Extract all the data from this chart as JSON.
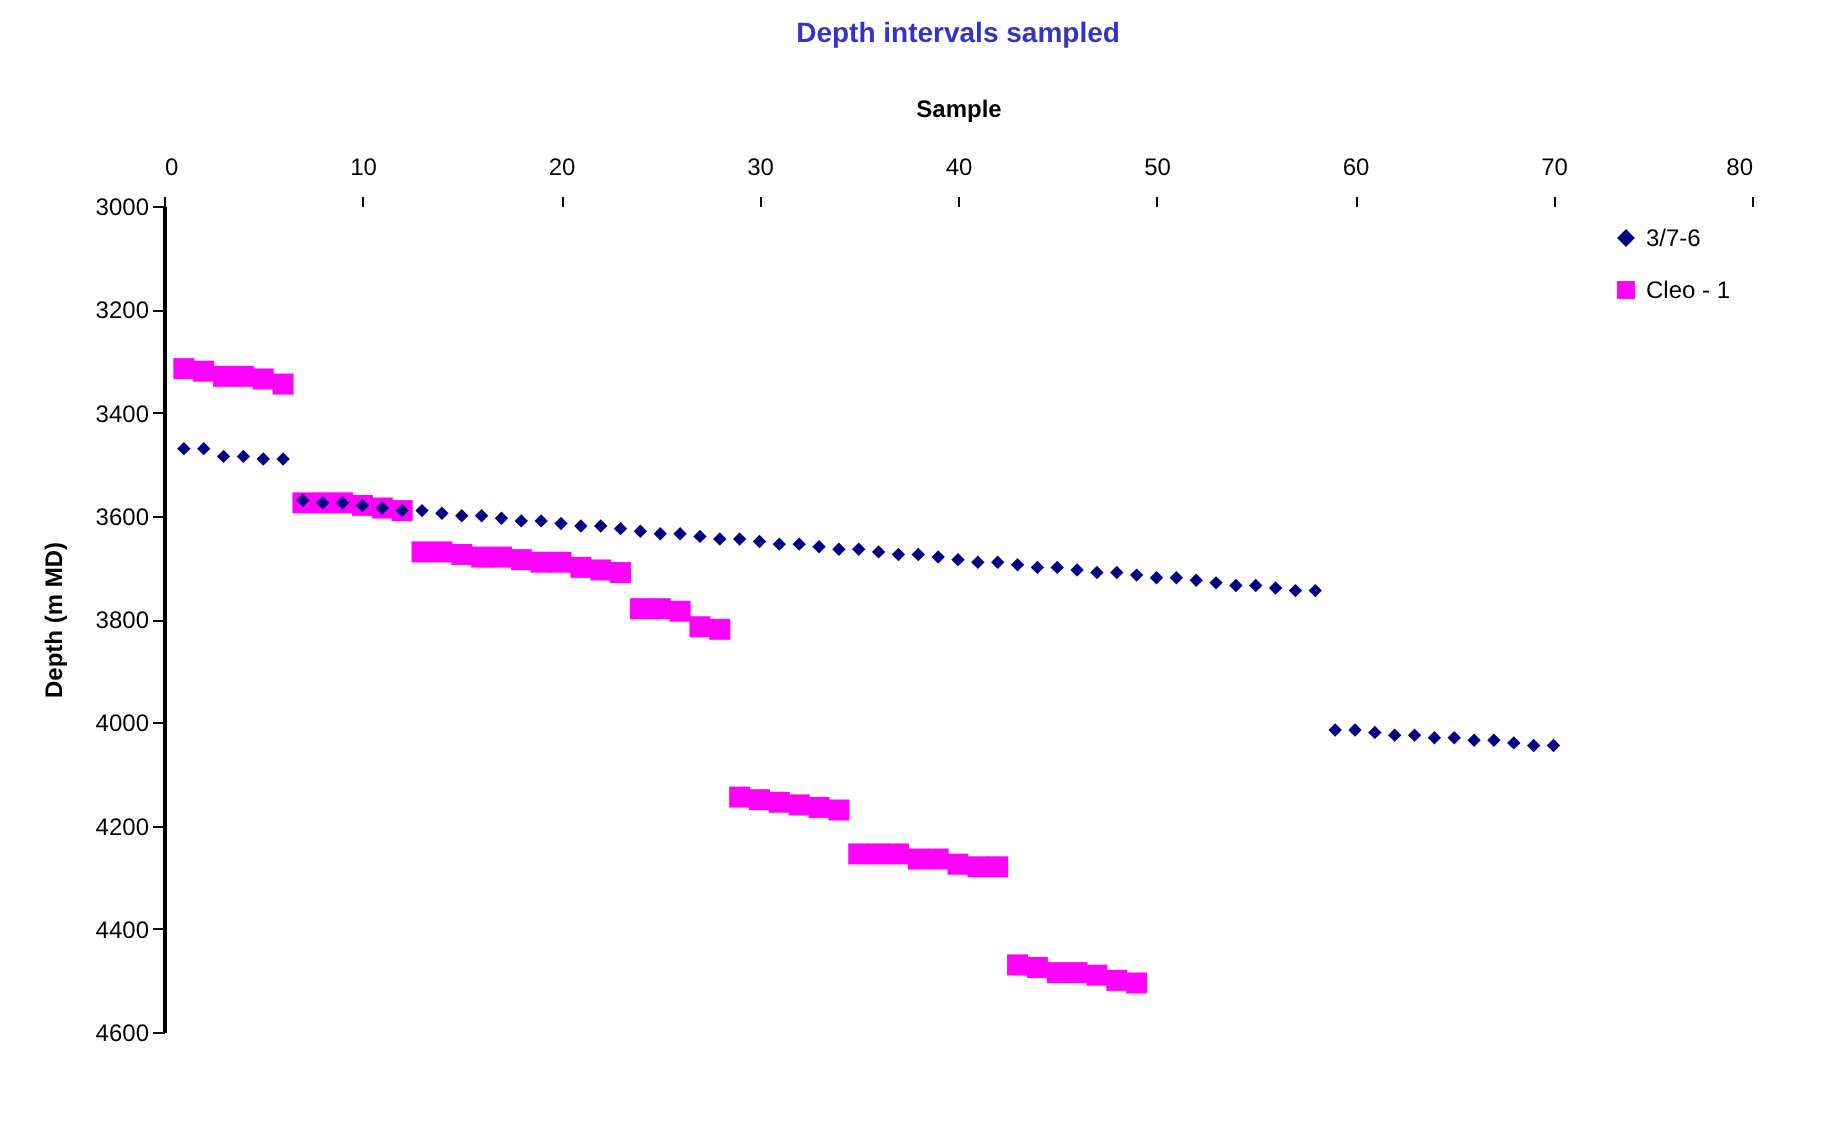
{
  "chart_data": {
    "type": "scatter",
    "title": "Depth intervals sampled",
    "xlabel": "Sample",
    "ylabel": "Depth (m MD)",
    "xlim": [
      0,
      80
    ],
    "xticks": [
      0,
      10,
      20,
      30,
      40,
      50,
      60,
      70,
      80
    ],
    "ylim": [
      4600,
      3000
    ],
    "yticks": [
      3000,
      3200,
      3400,
      3600,
      3800,
      4000,
      4200,
      4400,
      4600
    ],
    "grid": false,
    "legend": "top right",
    "series": [
      {
        "name": "3/7-6",
        "color": "#000080",
        "marker": "diamond",
        "x": [
          1,
          2,
          3,
          4,
          5,
          6,
          7,
          8,
          9,
          10,
          11,
          12,
          13,
          14,
          15,
          16,
          17,
          18,
          19,
          20,
          21,
          22,
          23,
          24,
          25,
          26,
          27,
          28,
          29,
          30,
          31,
          32,
          33,
          34,
          35,
          36,
          37,
          38,
          39,
          40,
          41,
          42,
          43,
          44,
          45,
          46,
          47,
          48,
          49,
          50,
          51,
          52,
          53,
          54,
          55,
          56,
          57,
          58,
          59,
          60,
          61,
          62,
          63,
          64,
          65,
          66,
          67,
          68,
          69,
          70
        ],
        "values": [
          3470,
          3470,
          3485,
          3485,
          3490,
          3490,
          3570,
          3575,
          3575,
          3580,
          3585,
          3590,
          3590,
          3595,
          3600,
          3600,
          3605,
          3610,
          3610,
          3615,
          3620,
          3620,
          3625,
          3630,
          3635,
          3635,
          3640,
          3645,
          3645,
          3650,
          3655,
          3655,
          3660,
          3665,
          3665,
          3670,
          3675,
          3675,
          3680,
          3685,
          3690,
          3690,
          3695,
          3700,
          3700,
          3705,
          3710,
          3710,
          3715,
          3720,
          3720,
          3725,
          3730,
          3735,
          3735,
          3740,
          3745,
          3745,
          4015,
          4015,
          4020,
          4025,
          4025,
          4030,
          4030,
          4035,
          4035,
          4040,
          4045,
          4045
        ]
      },
      {
        "name": "Cleo - 1",
        "color": "#ff00ff",
        "marker": "square",
        "x": [
          1,
          2,
          3,
          4,
          5,
          6,
          7,
          8,
          9,
          10,
          11,
          12,
          13,
          14,
          15,
          16,
          17,
          18,
          19,
          20,
          21,
          22,
          23,
          24,
          25,
          26,
          27,
          28,
          29,
          30,
          31,
          32,
          33,
          34,
          35,
          36,
          37,
          38,
          39,
          40,
          41,
          42,
          43,
          44,
          45,
          46,
          47,
          48,
          49
        ],
        "values": [
          3315,
          3320,
          3330,
          3330,
          3335,
          3345,
          3575,
          3575,
          3575,
          3580,
          3585,
          3590,
          3670,
          3670,
          3675,
          3680,
          3680,
          3685,
          3690,
          3690,
          3700,
          3705,
          3710,
          3780,
          3780,
          3785,
          3815,
          3820,
          4145,
          4150,
          4155,
          4160,
          4165,
          4170,
          4255,
          4255,
          4255,
          4265,
          4265,
          4275,
          4280,
          4280,
          4470,
          4475,
          4485,
          4485,
          4490,
          4500,
          4505
        ]
      }
    ]
  }
}
